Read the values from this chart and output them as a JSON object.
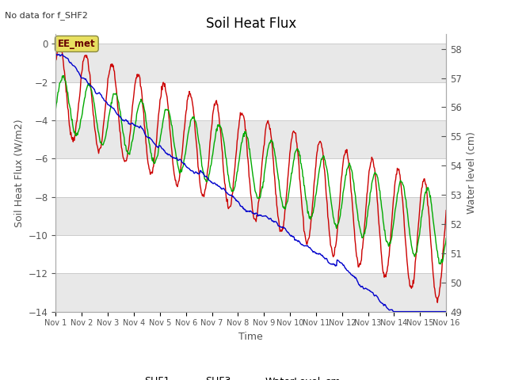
{
  "title": "Soil Heat Flux",
  "no_data_text": "No data for f_SHF2",
  "xlabel": "Time",
  "ylabel_left": "Soil Heat Flux (W/m2)",
  "ylabel_right": "Water level (cm)",
  "ylim_left": [
    -14,
    0.5
  ],
  "ylim_right": [
    49.0,
    58.5
  ],
  "yticks_left": [
    0,
    -2,
    -4,
    -6,
    -8,
    -10,
    -12,
    -14
  ],
  "yticks_right": [
    49.0,
    50.0,
    51.0,
    52.0,
    53.0,
    54.0,
    55.0,
    56.0,
    57.0,
    58.0
  ],
  "xtick_labels": [
    "Nov 1",
    "Nov 2",
    "Nov 3",
    "Nov 4",
    "Nov 5",
    "Nov 6",
    "Nov 7",
    "Nov 8",
    "Nov 9",
    "Nov 10",
    "Nov 11",
    "Nov 12",
    "Nov 13",
    "Nov 14",
    "Nov 15",
    "Nov 16"
  ],
  "annotation_text": "EE_met",
  "color_SHF1": "#cc0000",
  "color_SHF3": "#00aa00",
  "color_water": "#0000cc",
  "background_color": "#ffffff",
  "band_color": "#e8e8e8",
  "grid_color": "#cccccc"
}
